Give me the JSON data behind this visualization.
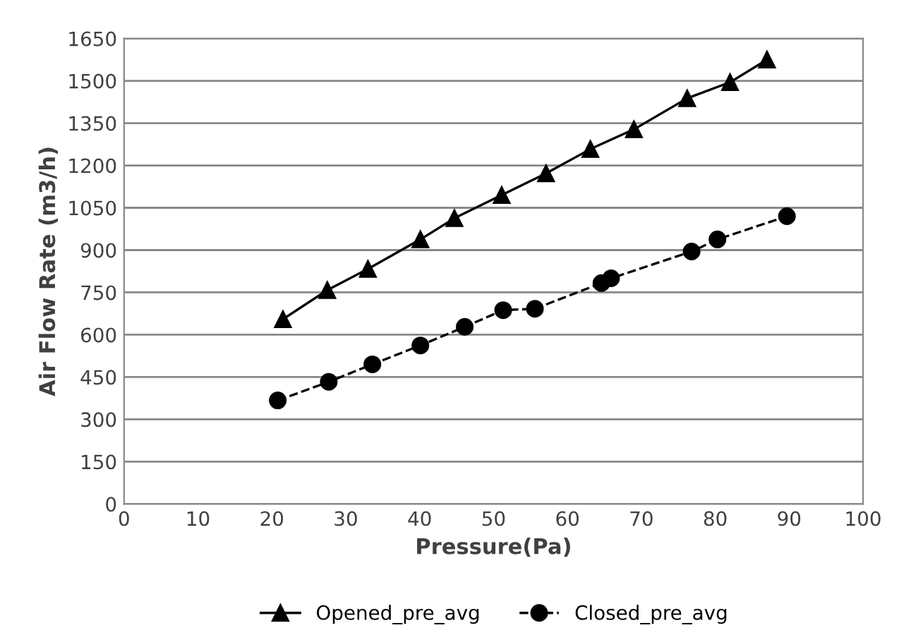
{
  "chart_data": {
    "type": "line",
    "xlabel": "Pressure(Pa)",
    "ylabel": "Air Flow Rate (m3/h)",
    "xlim": [
      0,
      100
    ],
    "xticks": [
      0,
      10,
      20,
      30,
      40,
      50,
      60,
      70,
      80,
      90,
      100
    ],
    "ylim": [
      0,
      1650
    ],
    "yticks": [
      0,
      150,
      300,
      450,
      600,
      750,
      900,
      1050,
      1200,
      1350,
      1500,
      1650
    ],
    "grid": "y",
    "legend": "bottom",
    "series": [
      {
        "name": "Opened_pre_avg",
        "color": "#000000",
        "marker": "triangle",
        "line_style": "solid",
        "x": [
          21.5,
          27.5,
          33.0,
          40.1,
          44.7,
          51.1,
          57.1,
          63.1,
          69.0,
          76.2,
          82.0,
          87.0
        ],
        "values": [
          655,
          758,
          833,
          938,
          1013,
          1095,
          1172,
          1258,
          1328,
          1438,
          1495,
          1575
        ]
      },
      {
        "name": "Closed_pre_avg",
        "color": "#000000",
        "marker": "circle",
        "line_style": "dashed",
        "x": [
          20.8,
          27.7,
          33.6,
          40.1,
          46.1,
          51.3,
          55.6,
          64.6,
          65.9,
          76.8,
          80.3,
          89.7
        ],
        "values": [
          367,
          433,
          495,
          562,
          628,
          687,
          692,
          783,
          800,
          895,
          938,
          1020
        ]
      }
    ]
  }
}
